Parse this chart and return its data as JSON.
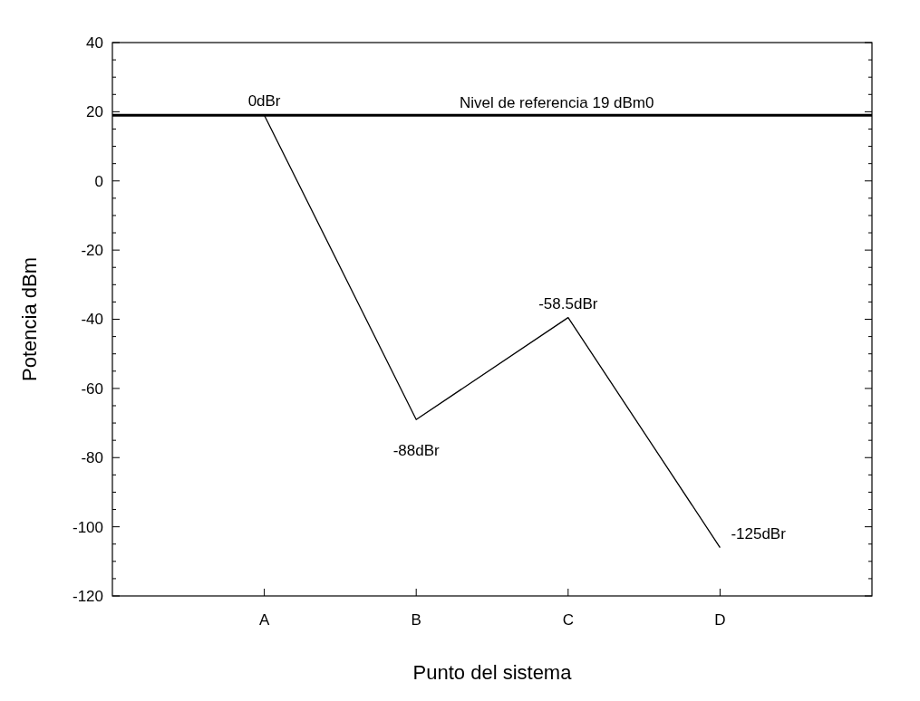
{
  "chart_data": {
    "type": "line",
    "xlabel": "Punto del sistema",
    "ylabel": "Potencia dBm",
    "categories": [
      "A",
      "B",
      "C",
      "D"
    ],
    "series": [
      {
        "color": "#000000",
        "values": [
          19,
          -69,
          -39.5,
          -106
        ]
      }
    ],
    "ylim": [
      -120,
      40
    ],
    "yticks": [
      -120,
      {
        "value": -115,
        "label": null
      },
      {
        "value": -110,
        "label": null
      },
      {
        "value": -105,
        "label": null
      },
      -100,
      {
        "value": -95,
        "label": null
      },
      {
        "value": -90,
        "label": null
      },
      {
        "value": -85,
        "label": null
      },
      -80,
      {
        "value": -75,
        "label": null
      },
      {
        "value": -70,
        "label": null
      },
      {
        "value": -65,
        "label": null
      },
      -60,
      {
        "value": -55,
        "label": null
      },
      {
        "value": -50,
        "label": null
      },
      {
        "value": -45,
        "label": null
      },
      -40,
      {
        "value": -35,
        "label": null
      },
      {
        "value": -30,
        "label": null
      },
      {
        "value": -25,
        "label": null
      },
      -20,
      {
        "value": -15,
        "label": null
      },
      {
        "value": -10,
        "label": null
      },
      {
        "value": -5,
        "label": null
      },
      0,
      {
        "value": 5,
        "label": null
      },
      {
        "value": 10,
        "label": null
      },
      {
        "value": 15,
        "label": null
      },
      20,
      {
        "value": 25,
        "label": null
      },
      {
        "value": 30,
        "label": null
      },
      {
        "value": 35,
        "label": null
      },
      40
    ],
    "ref_lines": [
      {
        "axis": "y",
        "value": 19,
        "label": "Nivel de referencia 19 dBm0",
        "color": "#000000"
      }
    ],
    "annotations": [
      {
        "text": "0dBr",
        "x": "A",
        "y": 19
      },
      {
        "text": "-88dBr",
        "x": "B",
        "y": -69
      },
      {
        "text": "-58.5dBr",
        "x": "C",
        "y": -39.5
      },
      {
        "text": "-125dBr",
        "x": "D",
        "y": -106
      }
    ],
    "line_style": "solid"
  }
}
